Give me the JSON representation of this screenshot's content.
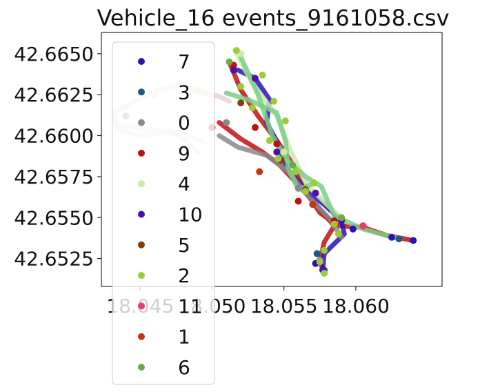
{
  "chart_data": {
    "type": "scatter",
    "title": "Vehicle_16 events_9161058.csv",
    "xlabel": "",
    "ylabel": "",
    "xlim": [
      18.0423,
      18.066
    ],
    "ylim": [
      42.6508,
      42.6663
    ],
    "x_ticks": [
      18.045,
      18.05,
      18.055,
      18.06
    ],
    "x_tick_labels": [
      "18.045",
      "18.050",
      "18.055",
      "18.060"
    ],
    "y_ticks": [
      42.6525,
      42.655,
      42.6575,
      42.66,
      42.6625,
      42.665
    ],
    "y_tick_labels": [
      "42.6525",
      "42.6550",
      "42.6575",
      "42.6600",
      "42.6625",
      "42.6650"
    ],
    "grid": false,
    "legend_position": "upper-left",
    "series": [
      {
        "name": "7",
        "color": "#2a12b8",
        "points": [
          [
            18.0625,
            42.6538
          ],
          [
            18.064,
            42.6536
          ],
          [
            18.0572,
            42.6522
          ],
          [
            18.0598,
            42.6543
          ]
        ]
      },
      {
        "name": "3",
        "color": "#1a5a8a",
        "points": [
          [
            18.063,
            42.6537
          ],
          [
            18.0573,
            42.6528
          ],
          [
            18.0578,
            42.6518
          ]
        ]
      },
      {
        "name": "0",
        "color": "#8a8a8a",
        "points": [
          [
            18.044,
            42.6612
          ],
          [
            18.056,
            42.6568
          ],
          [
            18.0575,
            42.6524
          ],
          [
            18.051,
            42.6608
          ]
        ]
      },
      {
        "name": "9",
        "color": "#c01010",
        "points": [
          [
            18.0515,
            42.6643
          ],
          [
            18.053,
            42.6605
          ],
          [
            18.0545,
            42.6595
          ],
          [
            18.056,
            42.656
          ],
          [
            18.0585,
            42.6548
          ],
          [
            18.0605,
            42.6545
          ]
        ]
      },
      {
        "name": "4",
        "color": "#cde9a8",
        "points": [
          [
            18.046,
            42.6625
          ],
          [
            18.049,
            42.6628
          ],
          [
            18.052,
            42.665
          ],
          [
            18.055,
            42.659
          ]
        ]
      },
      {
        "name": "10",
        "color": "#4a10a8",
        "points": [
          [
            18.053,
            42.6635
          ],
          [
            18.0515,
            42.664
          ],
          [
            18.0545,
            42.659
          ],
          [
            18.0572,
            42.6565
          ],
          [
            18.059,
            42.6548
          ],
          [
            18.0577,
            42.6518
          ]
        ]
      },
      {
        "name": "5",
        "color": "#8a3a0a",
        "points": [
          [
            18.052,
            42.662
          ],
          [
            18.0548,
            42.6585
          ],
          [
            18.0565,
            42.6567
          ]
        ]
      },
      {
        "name": "2",
        "color": "#9ccc35",
        "points": [
          [
            18.0517,
            42.6652
          ],
          [
            18.052,
            42.663
          ],
          [
            18.0528,
            42.6617
          ],
          [
            18.0535,
            42.6637
          ],
          [
            18.0543,
            42.6621
          ],
          [
            18.0551,
            42.6609
          ],
          [
            18.054,
            42.6597
          ],
          [
            18.0546,
            42.6586
          ],
          [
            18.0558,
            42.6578
          ],
          [
            18.0565,
            42.6566
          ],
          [
            18.0571,
            42.6571
          ],
          [
            18.0585,
            42.6546
          ],
          [
            18.0588,
            42.654
          ],
          [
            18.0575,
            42.6523
          ],
          [
            18.0578,
            42.653
          ],
          [
            18.0578,
            42.6516
          ]
        ]
      },
      {
        "name": "11",
        "color": "#ef3a6e",
        "points": [
          [
            18.0605,
            42.6545
          ]
        ]
      },
      {
        "name": "1",
        "color": "#c8360f",
        "points": [
          [
            18.05,
            42.6605
          ],
          [
            18.0533,
            42.6578
          ],
          [
            18.057,
            42.6558
          ]
        ]
      },
      {
        "name": "6",
        "color": "#6fa84a",
        "points": [
          [
            18.0512,
            42.6645
          ],
          [
            18.0556,
            42.6582
          ],
          [
            18.059,
            42.655
          ]
        ]
      }
    ],
    "routes": [
      {
        "color": "#c01010",
        "points": [
          [
            18.0512,
            42.6645
          ],
          [
            18.052,
            42.6628
          ],
          [
            18.0532,
            42.6612
          ],
          [
            18.0545,
            42.6597
          ],
          [
            18.0558,
            42.658
          ],
          [
            18.0565,
            42.6566
          ],
          [
            18.0575,
            42.6553
          ],
          [
            18.0588,
            42.6545
          ],
          [
            18.0605,
            42.6544
          ],
          [
            18.0622,
            42.6539
          ],
          [
            18.064,
            42.6536
          ]
        ]
      },
      {
        "color": "#c01010",
        "points": [
          [
            18.0505,
            42.6608
          ],
          [
            18.052,
            42.6598
          ],
          [
            18.0535,
            42.659
          ],
          [
            18.0546,
            42.6583
          ],
          [
            18.056,
            42.657
          ],
          [
            18.0575,
            42.6555
          ],
          [
            18.0585,
            42.6545
          ],
          [
            18.0578,
            42.6535
          ],
          [
            18.0575,
            42.6523
          ],
          [
            18.0578,
            42.6517
          ]
        ]
      },
      {
        "color": "#2a12b8",
        "points": [
          [
            18.0518,
            42.664
          ],
          [
            18.053,
            42.6635
          ],
          [
            18.054,
            42.6622
          ],
          [
            18.0538,
            42.6608
          ],
          [
            18.0546,
            42.6595
          ],
          [
            18.0552,
            42.658
          ],
          [
            18.0566,
            42.6566
          ],
          [
            18.0578,
            42.6558
          ],
          [
            18.059,
            42.6548
          ],
          [
            18.0592,
            42.654
          ],
          [
            18.0578,
            42.6528
          ],
          [
            18.0577,
            42.6518
          ]
        ]
      },
      {
        "color": "#8a8a8a",
        "points": [
          [
            18.0505,
            42.66
          ],
          [
            18.0518,
            42.6593
          ],
          [
            18.0538,
            42.6588
          ],
          [
            18.0553,
            42.6578
          ],
          [
            18.0568,
            42.6562
          ],
          [
            18.0583,
            42.6548
          ],
          [
            18.059,
            42.6538
          ]
        ]
      },
      {
        "color": "#cde9a8",
        "points": [
          [
            18.0516,
            42.6652
          ],
          [
            18.0528,
            42.6632
          ],
          [
            18.0545,
            42.6612
          ],
          [
            18.0555,
            42.659
          ],
          [
            18.0566,
            42.657
          ],
          [
            18.058,
            42.6558
          ],
          [
            18.0592,
            42.6548
          ]
        ]
      },
      {
        "color": "#7dcf88",
        "points": [
          [
            18.052,
            42.6648
          ],
          [
            18.0532,
            42.6625
          ],
          [
            18.0542,
            42.66
          ],
          [
            18.0552,
            42.6585
          ],
          [
            18.0565,
            42.6575
          ],
          [
            18.0576,
            42.6569
          ],
          [
            18.0585,
            42.6551
          ],
          [
            18.0605,
            42.6543
          ],
          [
            18.063,
            42.6537
          ]
        ]
      },
      {
        "color": "#7dcf88",
        "points": [
          [
            18.051,
            42.6626
          ],
          [
            18.0525,
            42.6622
          ],
          [
            18.0545,
            42.6614
          ],
          [
            18.0551,
            42.6597
          ],
          [
            18.0553,
            42.658
          ],
          [
            18.056,
            42.6567
          ],
          [
            18.0571,
            42.6571
          ]
        ]
      },
      {
        "color": "#e8d2cd",
        "points": [
          [
            18.049,
            42.659
          ],
          [
            18.0478,
            42.66
          ],
          [
            18.047,
            42.6602
          ],
          [
            18.0448,
            42.66
          ],
          [
            18.0433,
            42.6605
          ],
          [
            18.0432,
            42.6614
          ],
          [
            18.0446,
            42.6621
          ],
          [
            18.046,
            42.6627
          ],
          [
            18.0478,
            42.6631
          ],
          [
            18.0493,
            42.6626
          ],
          [
            18.0505,
            42.6624
          ],
          [
            18.0512,
            42.6621
          ]
        ]
      },
      {
        "color": "#d7dcee",
        "points": [
          [
            18.0433,
            42.6607
          ],
          [
            18.0447,
            42.6605
          ],
          [
            18.0465,
            42.6603
          ],
          [
            18.0483,
            42.66
          ],
          [
            18.0495,
            42.6596
          ]
        ]
      }
    ]
  }
}
